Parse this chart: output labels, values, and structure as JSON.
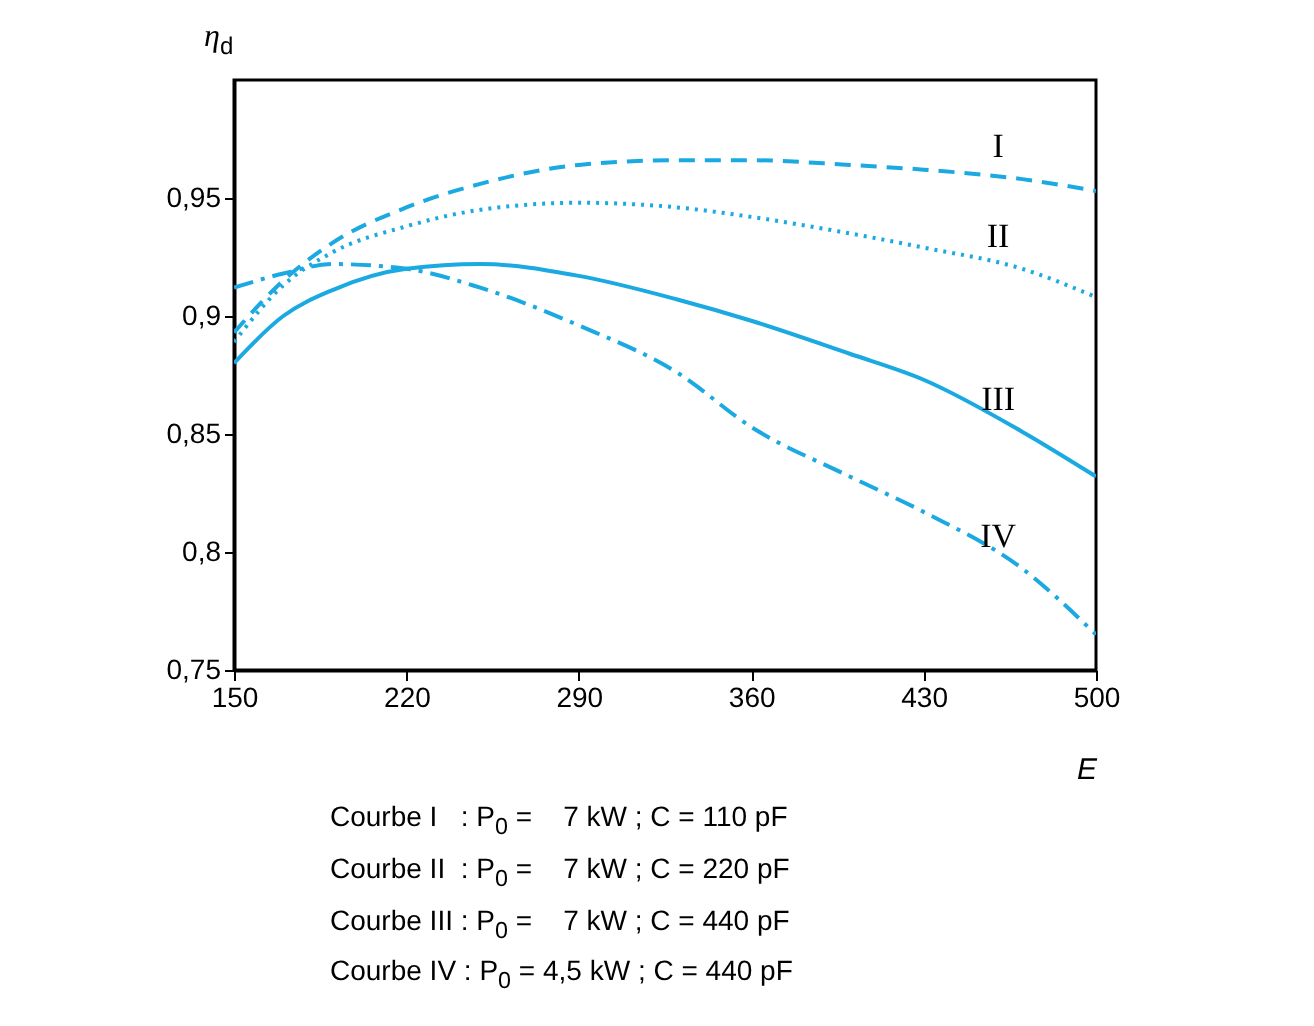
{
  "chart_data": {
    "type": "line",
    "xlabel": "E",
    "ylabel": "η$_{d}$",
    "xlim": [
      150,
      500
    ],
    "ylim": [
      0.75,
      1.0
    ],
    "xticks": [
      150,
      220,
      290,
      360,
      430,
      500
    ],
    "yticks": [
      {
        "value": 0.75,
        "label": "0,75"
      },
      {
        "value": 0.8,
        "label": "0,8"
      },
      {
        "value": 0.85,
        "label": "0,85"
      },
      {
        "value": 0.9,
        "label": "0,9"
      },
      {
        "value": 0.95,
        "label": "0,95"
      }
    ],
    "grid": false,
    "legend": false,
    "marker": "none",
    "x": [
      150,
      170,
      190,
      220,
      250,
      290,
      330,
      360,
      400,
      430,
      470,
      500
    ],
    "series": [
      {
        "name": "I",
        "color": "#1ba9e1",
        "line_style": "dashed",
        "values": [
          0.893,
          0.915,
          0.931,
          0.946,
          0.956,
          0.964,
          0.966,
          0.966,
          0.964,
          0.962,
          0.958,
          0.953
        ]
      },
      {
        "name": "II",
        "color": "#1ba9e1",
        "line_style": "dotted",
        "values": [
          0.889,
          0.913,
          0.927,
          0.938,
          0.945,
          0.948,
          0.946,
          0.942,
          0.935,
          0.929,
          0.92,
          0.908
        ]
      },
      {
        "name": "III",
        "color": "#1ba9e1",
        "line_style": "solid",
        "values": [
          0.88,
          0.9,
          0.911,
          0.92,
          0.922,
          0.917,
          0.907,
          0.898,
          0.884,
          0.873,
          0.851,
          0.832
        ]
      },
      {
        "name": "IV",
        "color": "#1ba9e1",
        "line_style": "dashdot",
        "values": [
          0.912,
          0.918,
          0.922,
          0.92,
          0.912,
          0.896,
          0.876,
          0.853,
          0.832,
          0.817,
          0.793,
          0.765
        ]
      }
    ],
    "annotations": [
      "Courbe I   : P$_{0}$ =    7 kW ; C = 110 pF",
      "Courbe II  : P$_{0}$ =    7 kW ; C = 220 pF",
      "Courbe III : P$_{0}$ =    7 kW ; C = 440 pF",
      "Courbe IV : P$_{0}$ = 4,5 kW ; C = 440 pF"
    ]
  }
}
